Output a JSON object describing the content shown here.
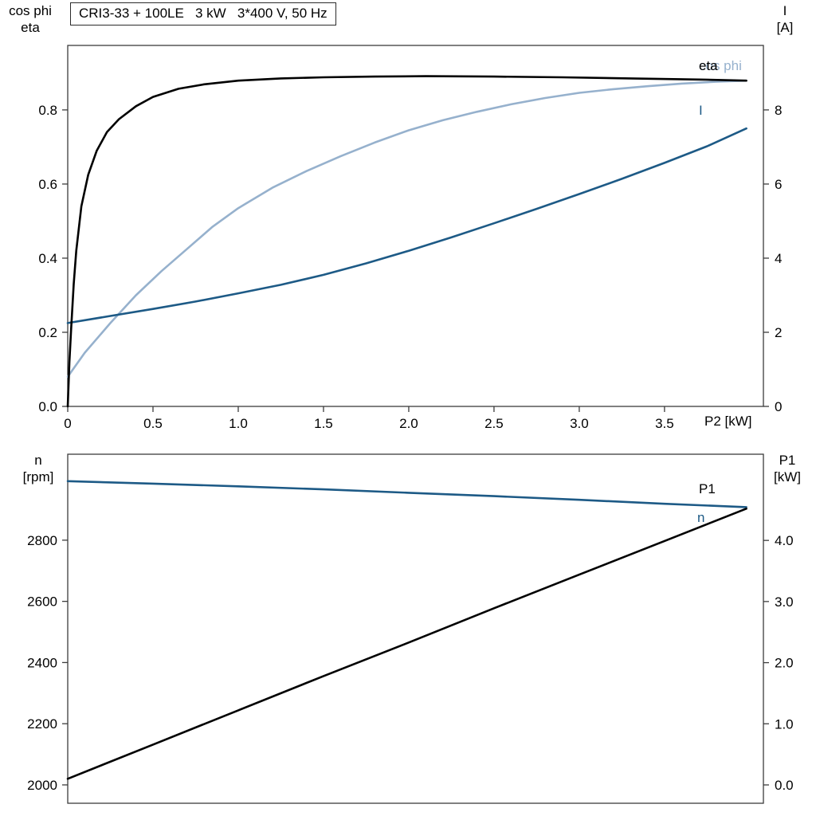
{
  "colors": {
    "frame": "#3c3c3c",
    "black": "#000000",
    "dark_blue": "#1d5a86",
    "light_blue": "#96b1cd"
  },
  "chart_data": [
    {
      "type": "line",
      "title": "CRI3-33 + 100LE   3 kW   3*400 V, 50 Hz",
      "x_axis": {
        "label": "P2 [kW]",
        "range": [
          0,
          4.08
        ],
        "ticks": [
          "0",
          "0.5",
          "1.0",
          "1.5",
          "2.0",
          "2.5",
          "3.0",
          "3.5"
        ],
        "tick_values": [
          0,
          0.5,
          1.0,
          1.5,
          2.0,
          2.5,
          3.0,
          3.5
        ]
      },
      "left_axis": {
        "label_line1": "cos phi",
        "label_line2": "eta",
        "range": [
          0,
          0.974
        ],
        "ticks": [
          "0.0",
          "0.2",
          "0.4",
          "0.6",
          "0.8"
        ],
        "tick_values": [
          0,
          0.2,
          0.4,
          0.6,
          0.8
        ]
      },
      "right_axis": {
        "label_line1": "I",
        "label_line2": "[A]",
        "range": [
          0,
          9.74
        ],
        "ticks": [
          "0",
          "2",
          "4",
          "6",
          "8"
        ],
        "tick_values": [
          0,
          2,
          4,
          6,
          8
        ]
      },
      "series": [
        {
          "name": "cos_phi",
          "label": "cos phi",
          "axis": "left",
          "color": "#96b1cd",
          "width": 2.6,
          "x": [
            0,
            0.1,
            0.25,
            0.4,
            0.55,
            0.7,
            0.85,
            1.0,
            1.2,
            1.4,
            1.6,
            1.8,
            2.0,
            2.2,
            2.4,
            2.6,
            2.8,
            3.0,
            3.2,
            3.4,
            3.6,
            3.8,
            3.98
          ],
          "y": [
            0.08,
            0.145,
            0.225,
            0.3,
            0.365,
            0.425,
            0.485,
            0.535,
            0.59,
            0.635,
            0.675,
            0.712,
            0.745,
            0.772,
            0.795,
            0.815,
            0.832,
            0.846,
            0.856,
            0.864,
            0.871,
            0.876,
            0.879
          ]
        },
        {
          "name": "I",
          "label": "I",
          "axis": "right",
          "color": "#1d5a86",
          "width": 2.6,
          "x": [
            0,
            0.25,
            0.5,
            0.75,
            1.0,
            1.25,
            1.5,
            1.75,
            2.0,
            2.25,
            2.5,
            2.75,
            3.0,
            3.25,
            3.5,
            3.75,
            3.98
          ],
          "y": [
            2.25,
            2.44,
            2.63,
            2.83,
            3.05,
            3.28,
            3.55,
            3.86,
            4.2,
            4.56,
            4.94,
            5.33,
            5.73,
            6.14,
            6.57,
            7.02,
            7.5
          ]
        },
        {
          "name": "eta",
          "label": "eta",
          "axis": "left",
          "color": "#000000",
          "width": 2.6,
          "x": [
            0,
            0.01,
            0.02,
            0.035,
            0.05,
            0.08,
            0.12,
            0.17,
            0.23,
            0.3,
            0.4,
            0.5,
            0.65,
            0.8,
            1.0,
            1.25,
            1.5,
            1.8,
            2.1,
            2.5,
            2.9,
            3.3,
            3.7,
            3.98
          ],
          "y": [
            0,
            0.12,
            0.21,
            0.33,
            0.42,
            0.54,
            0.625,
            0.69,
            0.74,
            0.775,
            0.81,
            0.835,
            0.857,
            0.869,
            0.879,
            0.885,
            0.888,
            0.89,
            0.891,
            0.89,
            0.888,
            0.885,
            0.882,
            0.879
          ]
        }
      ]
    },
    {
      "type": "line",
      "x_axis": {
        "label": "",
        "range": [
          0,
          4.08
        ],
        "ticks": [],
        "tick_values": []
      },
      "left_axis": {
        "label_line1": "n",
        "label_line2": "[rpm]",
        "range": [
          1940,
          3081
        ],
        "ticks": [
          "2000",
          "2200",
          "2400",
          "2600",
          "2800"
        ],
        "tick_values": [
          2000,
          2200,
          2400,
          2600,
          2800
        ]
      },
      "right_axis": {
        "label_line1": "P1",
        "label_line2": "[kW]",
        "range": [
          -0.3,
          5.41
        ],
        "ticks": [
          "0.0",
          "1.0",
          "2.0",
          "3.0",
          "4.0"
        ],
        "tick_values": [
          0,
          1,
          2,
          3,
          4
        ]
      },
      "series": [
        {
          "name": "n",
          "label": "n",
          "axis": "left",
          "color": "#1d5a86",
          "width": 2.6,
          "x": [
            0,
            0.5,
            1.0,
            1.5,
            2.0,
            2.5,
            3.0,
            3.5,
            3.98
          ],
          "y": [
            2993,
            2985,
            2976,
            2966,
            2955,
            2944,
            2932,
            2919,
            2908
          ]
        },
        {
          "name": "P1",
          "label": "P1",
          "axis": "right",
          "color": "#000000",
          "width": 2.6,
          "x": [
            0,
            0.5,
            1.0,
            1.5,
            2.0,
            2.5,
            3.0,
            3.5,
            3.98
          ],
          "y": [
            0.1,
            0.66,
            1.22,
            1.78,
            2.33,
            2.89,
            3.44,
            3.99,
            4.52
          ]
        }
      ]
    }
  ]
}
